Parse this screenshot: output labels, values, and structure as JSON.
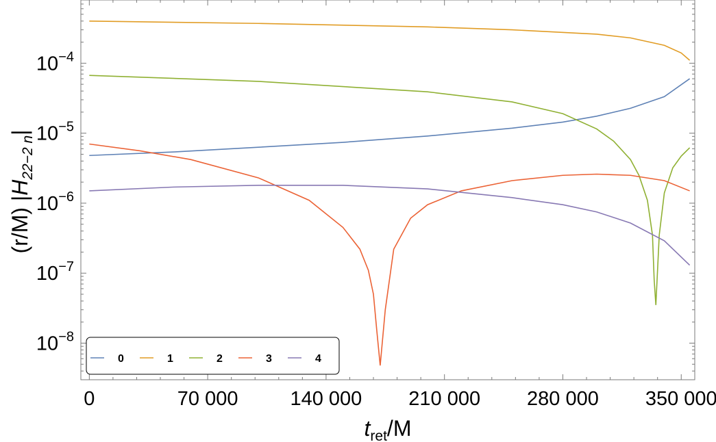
{
  "chart_data": {
    "type": "line",
    "scale": {
      "y": "log"
    },
    "xlim": [
      -5000,
      358000
    ],
    "ylim": [
      3e-09,
      0.0008
    ],
    "xticks": [
      0,
      70000,
      140000,
      210000,
      280000,
      350000
    ],
    "xtick_labels": [
      "0",
      "70 000",
      "140 000",
      "210 000",
      "280 000",
      "350 000"
    ],
    "yticks": [
      -8,
      -7,
      -6,
      -5,
      -4
    ],
    "ytick_labels": [
      {
        "base": "10",
        "exp": "−8"
      },
      {
        "base": "10",
        "exp": "−7"
      },
      {
        "base": "10",
        "exp": "−6"
      },
      {
        "base": "10",
        "exp": "−5"
      },
      {
        "base": "10",
        "exp": "−4"
      }
    ],
    "xlabel": {
      "main": "t",
      "sub": "ret",
      "rest": "/M"
    },
    "ylabel": {
      "prefix": "(r/M) |",
      "main": "H",
      "sub": "22−2 n",
      "suffix": "|"
    },
    "grid": false,
    "legend": {
      "placement": "bottom-left",
      "orientation": "horizontal"
    },
    "series": [
      {
        "name": "0",
        "color": "#5e81b5",
        "x": [
          0,
          50000,
          100000,
          150000,
          200000,
          250000,
          280000,
          300000,
          320000,
          340000,
          355000
        ],
        "y": [
          4.8e-06,
          5.4e-06,
          6.3e-06,
          7.4e-06,
          9.1e-06,
          1.18e-05,
          1.44e-05,
          1.75e-05,
          2.27e-05,
          3.33e-05,
          6e-05
        ]
      },
      {
        "name": "1",
        "color": "#e19c24",
        "x": [
          0,
          100000,
          200000,
          250000,
          300000,
          320000,
          340000,
          350000,
          355000
        ],
        "y": [
          0.0004,
          0.00037,
          0.00033,
          0.0003,
          0.00026,
          0.00023,
          0.00018,
          0.00014,
          0.00011
        ]
      },
      {
        "name": "2",
        "color": "#8fb032",
        "x": [
          0,
          100000,
          200000,
          250000,
          280000,
          300000,
          310000,
          320000,
          325000,
          330000,
          333000,
          334000,
          335000,
          337000,
          340000,
          345000,
          350000,
          355000
        ],
        "y": [
          6.7e-05,
          5.5e-05,
          3.9e-05,
          2.8e-05,
          1.9e-05,
          1.15e-05,
          7.7e-06,
          4.2e-06,
          2.5e-06,
          1.1e-06,
          3.5e-07,
          8e-08,
          3.5e-08,
          3.5e-07,
          1.4e-06,
          3.2e-06,
          4.7e-06,
          6.2e-06
        ]
      },
      {
        "name": "3",
        "color": "#eb6235",
        "x": [
          0,
          30000,
          60000,
          100000,
          130000,
          150000,
          160000,
          165000,
          168000,
          170000,
          172000,
          175000,
          180000,
          190000,
          200000,
          220000,
          250000,
          280000,
          300000,
          320000,
          340000,
          355000
        ],
        "y": [
          7e-06,
          5.6e-06,
          4.2e-06,
          2.3e-06,
          1.1e-06,
          4.5e-07,
          2.2e-07,
          1.1e-07,
          5e-08,
          1.5e-08,
          4.8e-09,
          3e-08,
          2.2e-07,
          6.1e-07,
          9.5e-07,
          1.5e-06,
          2.1e-06,
          2.5e-06,
          2.6e-06,
          2.5e-06,
          2.1e-06,
          1.5e-06
        ]
      },
      {
        "name": "4",
        "color": "#8778b3",
        "x": [
          0,
          50000,
          100000,
          150000,
          200000,
          250000,
          280000,
          300000,
          320000,
          340000,
          355000
        ],
        "y": [
          1.5e-06,
          1.7e-06,
          1.8e-06,
          1.8e-06,
          1.6e-06,
          1.2e-06,
          9.5e-07,
          7.5e-07,
          5.2e-07,
          2.9e-07,
          1.3e-07
        ]
      }
    ]
  }
}
